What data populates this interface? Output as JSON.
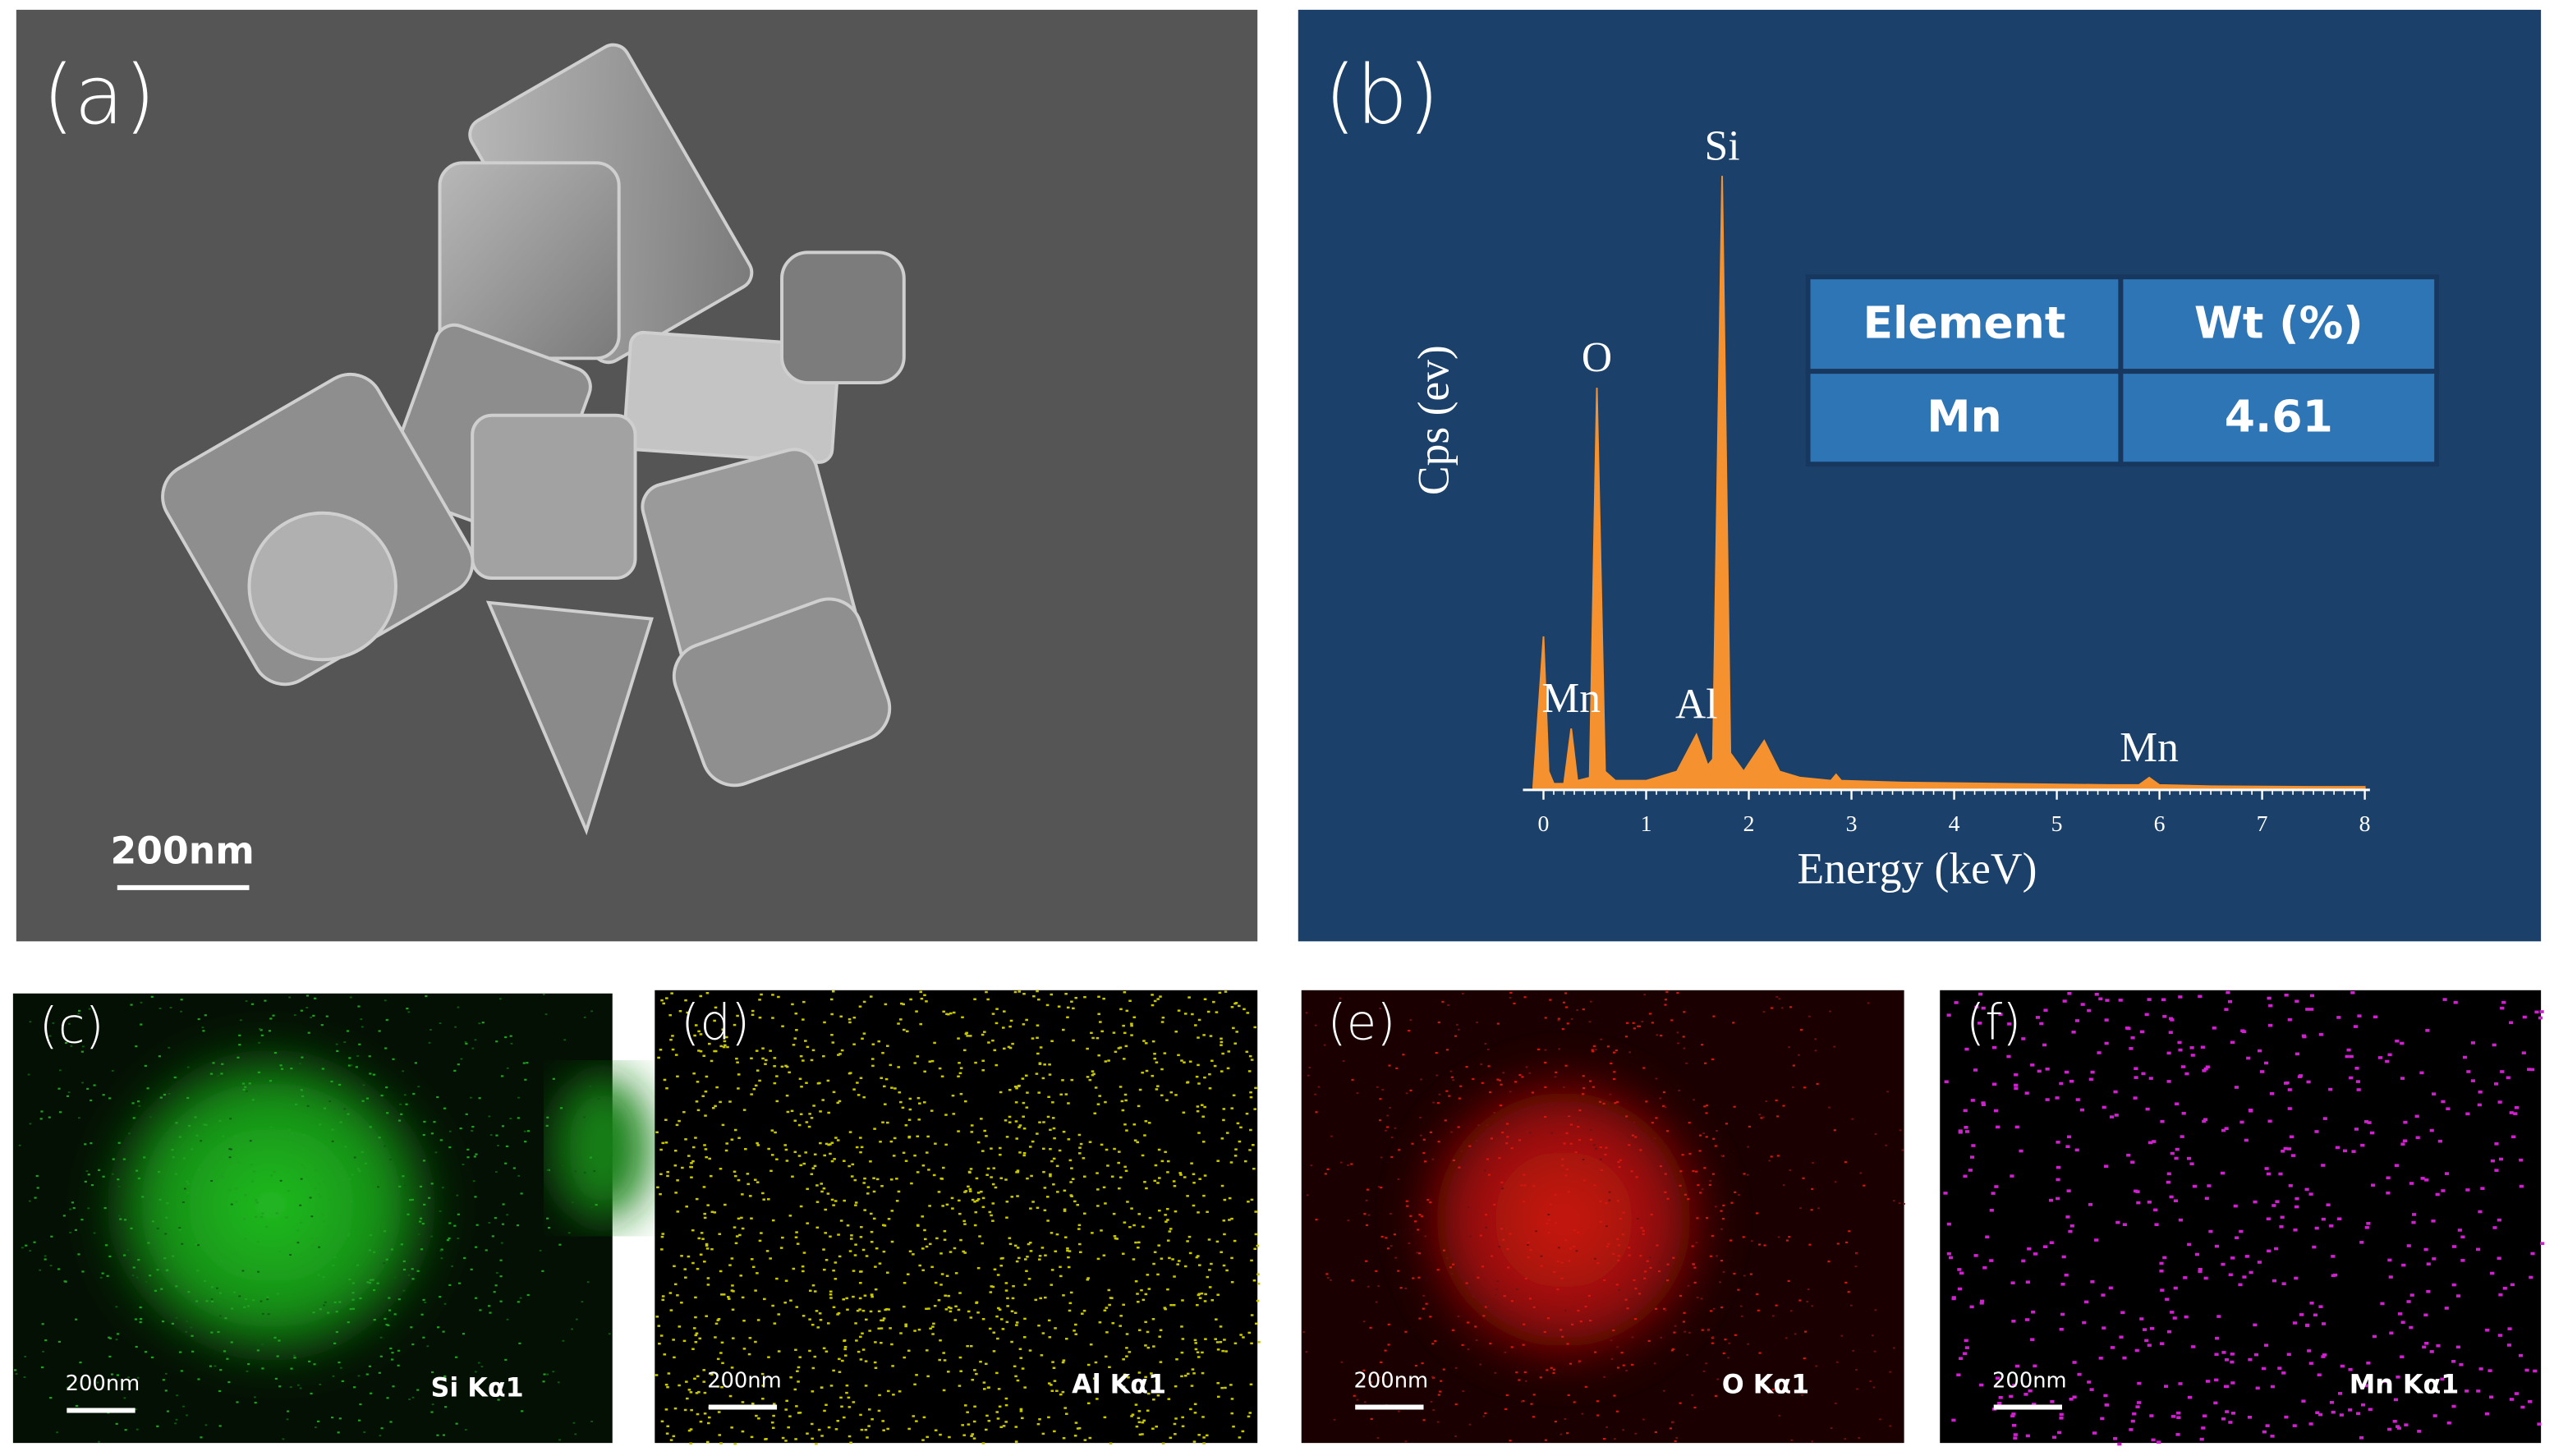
{
  "panels": [
    {
      "label": "(a)",
      "scale_bar": "200nm"
    },
    {
      "label": "(b)"
    },
    {
      "label": "(c)",
      "scale_bar": "200nm",
      "element": "Si Kα1"
    },
    {
      "label": "(d)",
      "scale_bar": "200nm",
      "element": "Al Kα1"
    },
    {
      "label": "(e)",
      "scale_bar": "200nm",
      "element": "O Kα1"
    },
    {
      "label": "(f)",
      "scale_bar": "200nm",
      "element": "Mn Kα1"
    }
  ],
  "chart_data": {
    "type": "area",
    "xlabel": "Energy (keV)",
    "ylabel": "Cps (ev)",
    "x": [
      -0.1,
      0,
      0.05,
      0.1,
      0.2,
      0.27,
      0.33,
      0.45,
      0.52,
      0.6,
      0.7,
      1.0,
      1.3,
      1.49,
      1.6,
      1.65,
      1.74,
      1.82,
      1.95,
      2.15,
      2.3,
      2.5,
      2.8,
      2.85,
      2.9,
      3.5,
      4.5,
      5.5,
      5.8,
      5.9,
      6.0,
      6.5,
      7.5,
      8
    ],
    "values": [
      0.5,
      25,
      3,
      1,
      1,
      10,
      1.5,
      2,
      65.5,
      3,
      1.5,
      1.5,
      3,
      9,
      4,
      5,
      100,
      6,
      3,
      8,
      3,
      2,
      1.5,
      2.5,
      1.5,
      1.2,
      1,
      0.8,
      0.8,
      2,
      0.8,
      0.6,
      0.5,
      0.5
    ],
    "color": "#f5922f",
    "xlim": [
      -0.2,
      8.05
    ],
    "ylim": [
      0,
      100
    ],
    "xticks": [
      0,
      1,
      2,
      3,
      4,
      5,
      6,
      7,
      8
    ],
    "annotations": [
      {
        "text": "Si",
        "x": 1.74
      },
      {
        "text": "O",
        "x": 0.52
      },
      {
        "text": "Mn",
        "x": 0.27
      },
      {
        "text": "Al",
        "x": 1.49
      },
      {
        "text": "Mn",
        "x": 5.9
      }
    ]
  },
  "table": {
    "header": [
      "Element",
      "Wt (%)"
    ],
    "rows": [
      [
        "Mn",
        "4.61"
      ]
    ]
  }
}
